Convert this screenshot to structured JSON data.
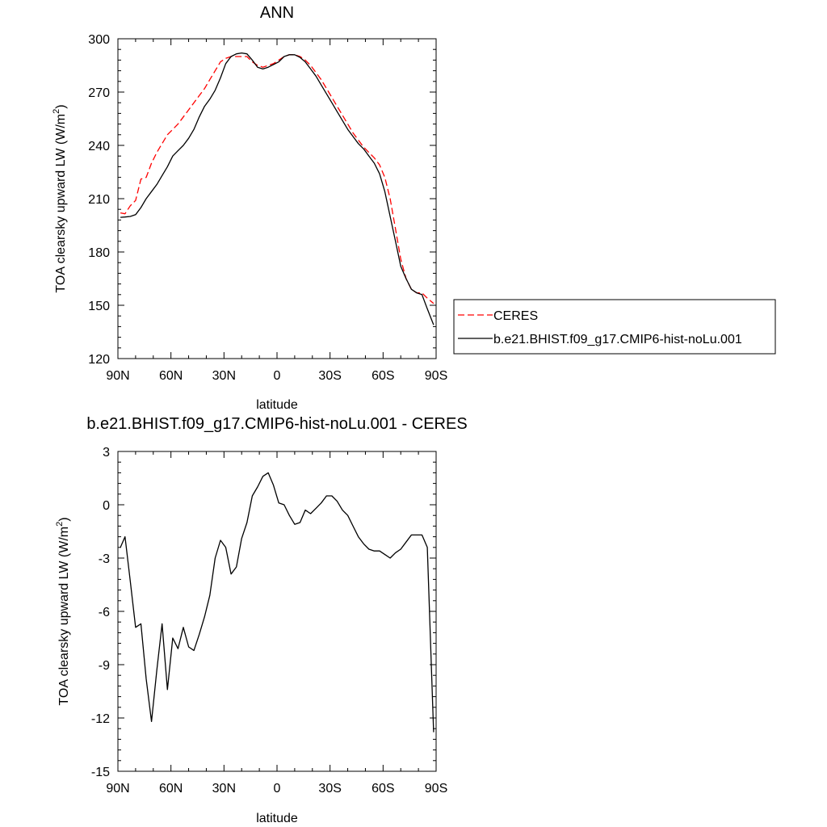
{
  "chart_data": [
    {
      "type": "line",
      "title": "ANN",
      "xlabel": "latitude",
      "ylabel": "TOA clearsky upward LW (W/m",
      "ylabel_sup": "2",
      "ylabel_end": ")",
      "xlim": [
        90,
        -90
      ],
      "ylim": [
        120,
        300
      ],
      "xticks": [
        90,
        60,
        30,
        0,
        -30,
        -60,
        -90
      ],
      "xtick_labels": [
        "90N",
        "60N",
        "30N",
        "0",
        "30S",
        "60S",
        "90S"
      ],
      "yticks": [
        120,
        150,
        180,
        210,
        240,
        270,
        300
      ],
      "ytick_labels": [
        "120",
        "150",
        "180",
        "210",
        "240",
        "270",
        "300"
      ],
      "legend_position": "right",
      "series": [
        {
          "name": "CERES",
          "color": "#ff0000",
          "dash": "dashed",
          "x": [
            88.6,
            86,
            83,
            80,
            77,
            74,
            71,
            68,
            65,
            62,
            59,
            56,
            53,
            50,
            47,
            44,
            41,
            38,
            35,
            32,
            29,
            26,
            23,
            20,
            17,
            14,
            11,
            8,
            5,
            2,
            -1,
            -4,
            -7,
            -10,
            -13,
            -16,
            -19,
            -22,
            -25,
            -28,
            -31,
            -34,
            -37,
            -40,
            -43,
            -46,
            -49,
            -52,
            -55,
            -58,
            -61,
            -64,
            -67,
            -70,
            -73,
            -76,
            -79,
            -82,
            -85,
            -88.6
          ],
          "y": [
            202,
            201.5,
            206,
            209,
            221,
            222,
            230,
            236,
            241,
            246,
            249,
            252,
            256,
            260,
            264,
            268,
            272,
            277,
            282,
            287,
            289,
            290,
            290,
            290,
            290,
            287,
            285,
            284,
            285,
            286,
            288,
            290,
            291,
            291,
            290,
            288,
            285,
            281,
            277,
            272,
            267,
            262,
            257,
            252,
            247,
            243,
            239,
            236,
            233,
            229,
            222,
            210,
            193,
            176,
            165,
            159,
            157,
            157,
            154,
            151
          ]
        },
        {
          "name": "b.e21.BHIST.f09_g17.CMIP6-hist-noLu.001",
          "color": "#000000",
          "dash": "solid",
          "x": [
            88.6,
            86,
            83,
            80,
            77,
            74,
            71,
            68,
            65,
            62,
            59,
            56,
            53,
            50,
            47,
            44,
            41,
            38,
            35,
            32,
            29,
            26,
            23,
            20,
            17,
            14,
            11,
            8,
            5,
            2,
            -1,
            -4,
            -7,
            -10,
            -13,
            -16,
            -19,
            -22,
            -25,
            -28,
            -31,
            -34,
            -37,
            -40,
            -43,
            -46,
            -49,
            -52,
            -55,
            -58,
            -61,
            -64,
            -67,
            -70,
            -73,
            -76,
            -79,
            -82,
            -85,
            -88.6
          ],
          "y": [
            199.5,
            199.7,
            200,
            201,
            205,
            210,
            214,
            218,
            223,
            228,
            234,
            237,
            240,
            244,
            249,
            256,
            262,
            266,
            271,
            278,
            286,
            290,
            291.5,
            292,
            291.5,
            288,
            284,
            283,
            284,
            285.5,
            287,
            290,
            291,
            291,
            289.5,
            287,
            283,
            279,
            274,
            269,
            264,
            259,
            254,
            249,
            245,
            241,
            238,
            234,
            230,
            224,
            214,
            200,
            186,
            172,
            165,
            159,
            157,
            156,
            148,
            139
          ]
        }
      ]
    },
    {
      "type": "line",
      "title": "b.e21.BHIST.f09_g17.CMIP6-hist-noLu.001 - CERES",
      "xlabel": "latitude",
      "ylabel": "TOA clearsky upward LW (W/m",
      "ylabel_sup": "2",
      "ylabel_end": ")",
      "xlim": [
        90,
        -90
      ],
      "ylim": [
        -15,
        3
      ],
      "xticks": [
        90,
        60,
        30,
        0,
        -30,
        -60,
        -90
      ],
      "xtick_labels": [
        "90N",
        "60N",
        "30N",
        "0",
        "30S",
        "60S",
        "90S"
      ],
      "yticks": [
        3,
        0,
        -3,
        -6,
        -9,
        -12,
        -15
      ],
      "ytick_labels": [
        "3",
        "0",
        "-3",
        "-6",
        "-9",
        "-12",
        "-15"
      ],
      "series": [
        {
          "color": "#000000",
          "dash": "solid",
          "x": [
            88.6,
            86,
            83,
            80,
            77,
            74,
            71,
            68,
            65,
            62,
            59,
            56,
            53,
            50,
            47,
            44,
            41,
            38,
            35,
            32,
            29,
            26,
            23,
            20,
            17,
            14,
            11,
            8,
            5,
            2,
            -1,
            -4,
            -7,
            -10,
            -13,
            -16,
            -19,
            -22,
            -25,
            -28,
            -31,
            -34,
            -37,
            -40,
            -43,
            -46,
            -49,
            -52,
            -55,
            -58,
            -61,
            -64,
            -67,
            -70,
            -73,
            -76,
            -79,
            -82,
            -85,
            -88.6
          ],
          "y": [
            -2.4,
            -1.8,
            -4.3,
            -6.9,
            -6.7,
            -9.8,
            -12.2,
            -9.3,
            -6.7,
            -10.4,
            -7.5,
            -8.1,
            -6.9,
            -8.0,
            -8.2,
            -7.3,
            -6.3,
            -5.1,
            -3.0,
            -2.0,
            -2.4,
            -3.9,
            -3.5,
            -1.9,
            -1.0,
            0.5,
            1.0,
            1.6,
            1.8,
            1.1,
            0.1,
            0.0,
            -0.6,
            -1.1,
            -1.0,
            -0.3,
            -0.5,
            -0.2,
            0.1,
            0.5,
            0.5,
            0.2,
            -0.3,
            -0.6,
            -1.2,
            -1.8,
            -2.2,
            -2.5,
            -2.6,
            -2.6,
            -2.8,
            -3.0,
            -2.7,
            -2.5,
            -2.1,
            -1.7,
            -1.7,
            -1.7,
            -2.4,
            -12.8
          ]
        }
      ]
    }
  ]
}
